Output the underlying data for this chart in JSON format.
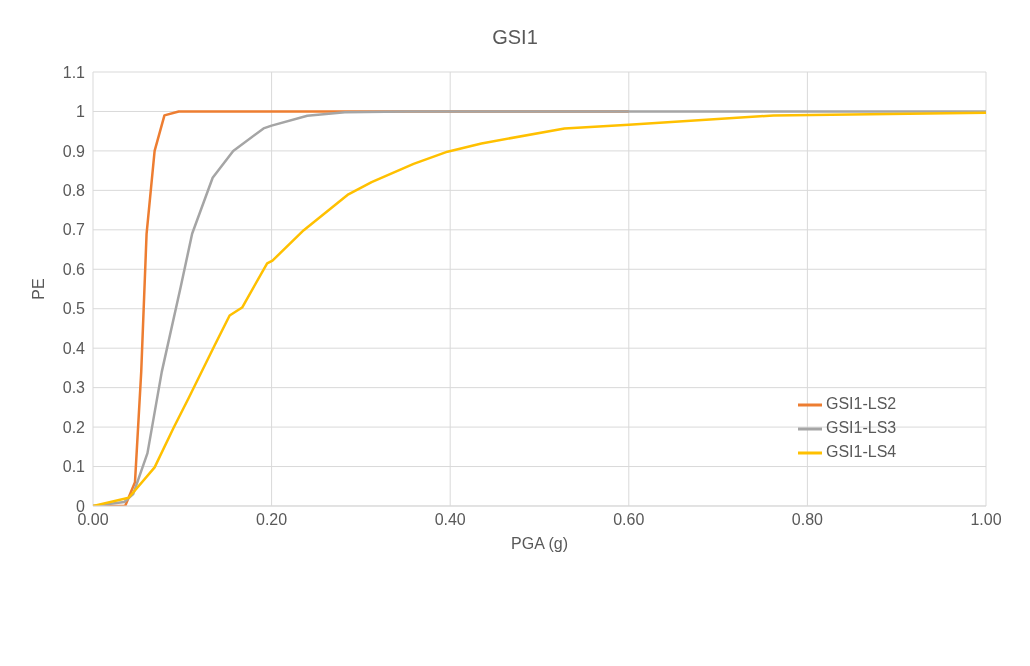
{
  "chart_data": {
    "type": "line",
    "title": "GSI1",
    "xlabel": "PGA (g)",
    "ylabel": "PE",
    "xlim": [
      0,
      1
    ],
    "ylim": [
      0,
      1.1
    ],
    "xticks": [
      {
        "value": 0,
        "label": "0.00"
      },
      {
        "value": 0.2,
        "label": "0.20"
      },
      {
        "value": 0.4,
        "label": "0.40"
      },
      {
        "value": 0.6,
        "label": "0.60"
      },
      {
        "value": 0.8,
        "label": "0.80"
      },
      {
        "value": 1,
        "label": "1.00"
      }
    ],
    "yticks": [
      0,
      0.1,
      0.2,
      0.3,
      0.4,
      0.5,
      0.6,
      0.7,
      0.8,
      0.9,
      1,
      1.1
    ],
    "grid": true,
    "legend": "right",
    "marker": "none",
    "line_style": "solid",
    "series": [
      {
        "name": "GSI1-LS2",
        "color": "#ed7d31",
        "x": [
          0,
          0.036,
          0.047,
          0.054,
          0.06,
          0.069,
          0.08,
          0.096,
          0.2,
          0.4,
          0.6
        ],
        "values": [
          0,
          0,
          0.06,
          0.34,
          0.69,
          0.9,
          0.99,
          1,
          1,
          1,
          1
        ]
      },
      {
        "name": "GSI1-LS3",
        "color": "#a5a5a5",
        "x": [
          0,
          0.035,
          0.045,
          0.061,
          0.077,
          0.098,
          0.111,
          0.134,
          0.157,
          0.191,
          0.2,
          0.24,
          0.282,
          0.35,
          0.5,
          0.8,
          1
        ],
        "values": [
          0,
          0.01,
          0.03,
          0.134,
          0.34,
          0.553,
          0.69,
          0.832,
          0.9,
          0.957,
          0.964,
          0.989,
          0.998,
          1,
          1,
          1,
          1
        ]
      },
      {
        "name": "GSI1-LS4",
        "color": "#ffc000",
        "x": [
          0,
          0.04,
          0.069,
          0.09,
          0.107,
          0.136,
          0.153,
          0.167,
          0.195,
          0.201,
          0.236,
          0.286,
          0.312,
          0.359,
          0.397,
          0.435,
          0.528,
          0.6,
          0.762,
          1
        ],
        "values": [
          0,
          0.021,
          0.098,
          0.197,
          0.273,
          0.406,
          0.483,
          0.503,
          0.615,
          0.622,
          0.699,
          0.79,
          0.821,
          0.867,
          0.898,
          0.919,
          0.957,
          0.966,
          0.99,
          0.997
        ]
      }
    ]
  }
}
